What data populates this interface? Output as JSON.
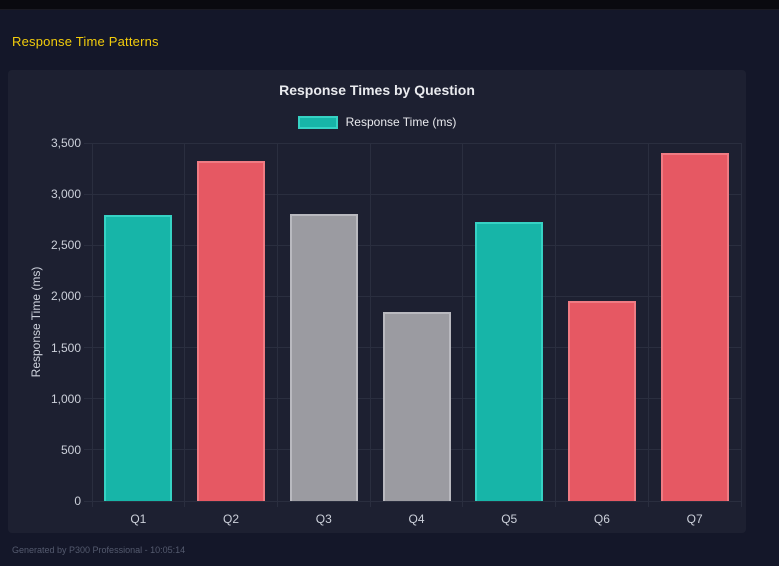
{
  "page": {
    "heading": "Response Time Patterns",
    "footer": "Generated by P300 Professional - 10:05:14"
  },
  "chart_data": {
    "type": "bar",
    "title": "Response Times by Question",
    "categories": [
      "Q1",
      "Q2",
      "Q3",
      "Q4",
      "Q5",
      "Q6",
      "Q7"
    ],
    "series": [
      {
        "name": "Response Time (ms)",
        "values": [
          2800,
          3325,
          2810,
          1850,
          2730,
          1955,
          3400
        ]
      }
    ],
    "bar_colors": [
      "#17b5a8",
      "#e65863",
      "#9b9ba1",
      "#9b9ba1",
      "#17b5a8",
      "#e65863",
      "#e65863"
    ],
    "bar_border_colors": [
      "#36d2c4",
      "#ef7b83",
      "#b9b9bf",
      "#b9b9bf",
      "#36d2c4",
      "#ef7b83",
      "#ef7b83"
    ],
    "xlabel": "",
    "ylabel": "Response Time (ms)",
    "ylim": [
      0,
      3500
    ],
    "ytick_step": 500,
    "grid": true,
    "legend_position": "top",
    "legend": [
      {
        "label": "Response Time (ms)",
        "fill": "#17b5a8",
        "border": "#36d2c4"
      }
    ]
  },
  "colors": {
    "page_bg": "#141729",
    "panel_bg": "#1d2031",
    "titlebar_bg": "#0a0a0f",
    "heading_text": "#f2cc0c",
    "chart_text": "#e9eaee",
    "tick_text": "#ccd0da",
    "gridline": "#2a2e3f",
    "footer_text": "#545a6e"
  }
}
